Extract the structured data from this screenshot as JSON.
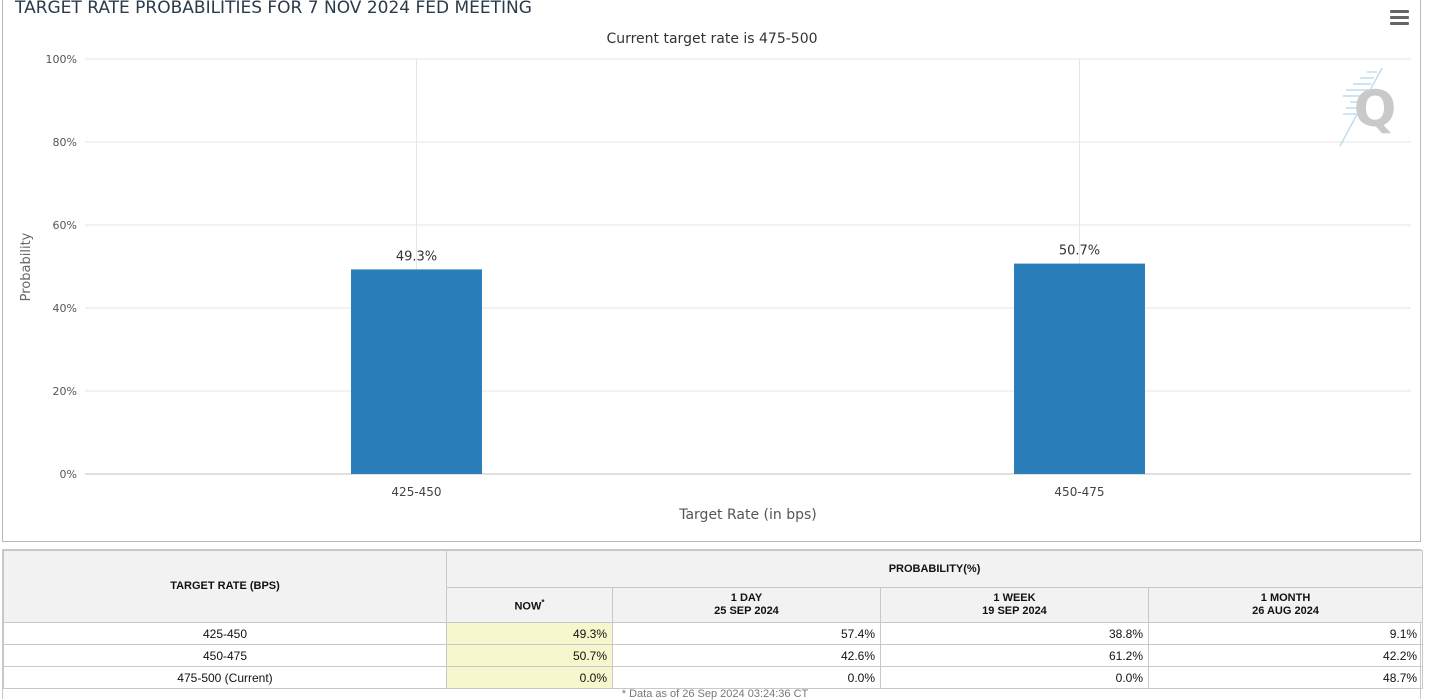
{
  "chart_data": {
    "type": "bar",
    "title": "TARGET RATE PROBABILITIES FOR 7 NOV 2024 FED MEETING",
    "subtitle": "Current target rate is 475-500",
    "xlabel": "Target Rate (in bps)",
    "ylabel": "Probability",
    "categories": [
      "425-450",
      "450-475"
    ],
    "values": [
      49.3,
      50.7
    ],
    "data_labels": [
      "49.3%",
      "50.7%"
    ],
    "ylim": [
      0,
      100
    ],
    "yticks": [
      "0%",
      "20%",
      "40%",
      "60%",
      "80%",
      "100%"
    ],
    "grid": true,
    "colors": {
      "bar": "#2a7fba"
    }
  },
  "table": {
    "rate_header": "TARGET RATE (BPS)",
    "prob_header": "PROBABILITY(%)",
    "cols": [
      {
        "line1": "NOW",
        "line2": "",
        "sup": "*"
      },
      {
        "line1": "1 DAY",
        "line2": "25 SEP 2024",
        "sup": ""
      },
      {
        "line1": "1 WEEK",
        "line2": "19 SEP 2024",
        "sup": ""
      },
      {
        "line1": "1 MONTH",
        "line2": "26 AUG 2024",
        "sup": ""
      }
    ],
    "rows": [
      {
        "rate": "425-450",
        "values": [
          "49.3%",
          "57.4%",
          "38.8%",
          "9.1%"
        ]
      },
      {
        "rate": "450-475",
        "values": [
          "50.7%",
          "42.6%",
          "61.2%",
          "42.2%"
        ]
      },
      {
        "rate": "475-500 (Current)",
        "values": [
          "0.0%",
          "0.0%",
          "0.0%",
          "48.7%"
        ]
      }
    ],
    "footnote": "* Data as of 26 Sep 2024 03:24:36 CT"
  }
}
